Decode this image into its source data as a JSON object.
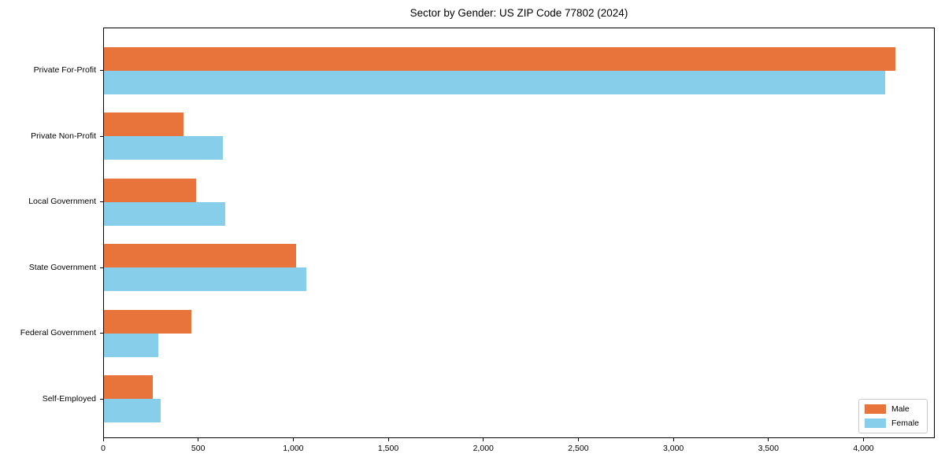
{
  "chart_data": {
    "type": "bar",
    "orientation": "horizontal",
    "title": "Sector by Gender: US ZIP Code 77802 (2024)",
    "categories": [
      "Private For-Profit",
      "Private Non-Profit",
      "Local Government",
      "State Government",
      "Federal Government",
      "Self-Employed"
    ],
    "series": [
      {
        "name": "Male",
        "color": "#e8743b",
        "values": [
          4165,
          420,
          485,
          1010,
          460,
          255
        ]
      },
      {
        "name": "Female",
        "color": "#87ceeb",
        "values": [
          4110,
          625,
          640,
          1065,
          285,
          300
        ]
      }
    ],
    "xlabel": "",
    "ylabel": "",
    "xlim": [
      0,
      4375
    ],
    "xticks": [
      0,
      500,
      1000,
      1500,
      2000,
      2500,
      3000,
      3500,
      4000
    ],
    "xtick_labels": [
      "0",
      "500",
      "1,000",
      "1,500",
      "2,000",
      "2,500",
      "3,000",
      "3,500",
      "4,000"
    ],
    "grid": false,
    "legend_position": "lower right",
    "axis_color": "#000000",
    "legend_border_color": "#c9c9c9",
    "background_color": "#ffffff"
  }
}
